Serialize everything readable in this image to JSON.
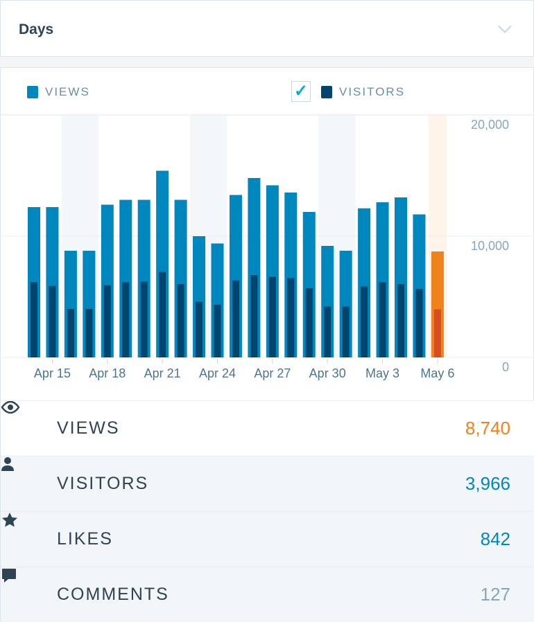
{
  "header": {
    "title": "Days"
  },
  "legend": {
    "views": "VIEWS",
    "visitors": "VISITORS",
    "visitors_checked": true
  },
  "colors": {
    "views": "#0087be",
    "visitors": "#00456d",
    "today_views": "#f0821e",
    "today_visitors": "#d54e21",
    "weekend": "#f3f7fa",
    "today_bg": "#fef4ea"
  },
  "chart_data": {
    "type": "bar",
    "categories": [
      "Apr 14",
      "Apr 15",
      "Apr 16",
      "Apr 17",
      "Apr 18",
      "Apr 19",
      "Apr 20",
      "Apr 21",
      "Apr 22",
      "Apr 23",
      "Apr 24",
      "Apr 25",
      "Apr 26",
      "Apr 27",
      "Apr 28",
      "Apr 29",
      "Apr 30",
      "May 1",
      "May 2",
      "May 3",
      "May 4",
      "May 5",
      "May 6"
    ],
    "tick_labels": [
      "Apr 15",
      "Apr 18",
      "Apr 21",
      "Apr 24",
      "Apr 27",
      "Apr 30",
      "May 3",
      "May 6"
    ],
    "series": [
      {
        "name": "VIEWS",
        "values": [
          12400,
          12400,
          8800,
          8800,
          12600,
          13000,
          13000,
          15400,
          13000,
          10000,
          9400,
          13400,
          14800,
          14200,
          13600,
          12000,
          9200,
          8800,
          12300,
          12800,
          13200,
          11800,
          8740
        ]
      },
      {
        "name": "VISITORS",
        "values": [
          6200,
          5900,
          4000,
          4000,
          5950,
          6200,
          6250,
          7050,
          6050,
          4600,
          4350,
          6350,
          6800,
          6650,
          6550,
          5700,
          4200,
          4200,
          5850,
          6200,
          6050,
          5650,
          3966
        ]
      }
    ],
    "weekend_categories": [
      "Apr 16",
      "Apr 17",
      "Apr 23",
      "Apr 24",
      "Apr 30",
      "May 1"
    ],
    "highlighted": "May 6",
    "y_ticks": [
      "0",
      "10,000",
      "20,000"
    ],
    "ylim": [
      0,
      20000
    ],
    "grid": true,
    "legend": "top-left"
  },
  "stats": [
    {
      "label": "VIEWS",
      "value": "8,740",
      "icon": "eye-icon",
      "color": "#f0821e"
    },
    {
      "label": "VISITORS",
      "value": "3,966",
      "icon": "person-icon",
      "color": "#0087be"
    },
    {
      "label": "LIKES",
      "value": "842",
      "icon": "star-icon",
      "color": "#0087be"
    },
    {
      "label": "COMMENTS",
      "value": "127",
      "icon": "comment-icon",
      "color": "#87a6bc"
    }
  ]
}
